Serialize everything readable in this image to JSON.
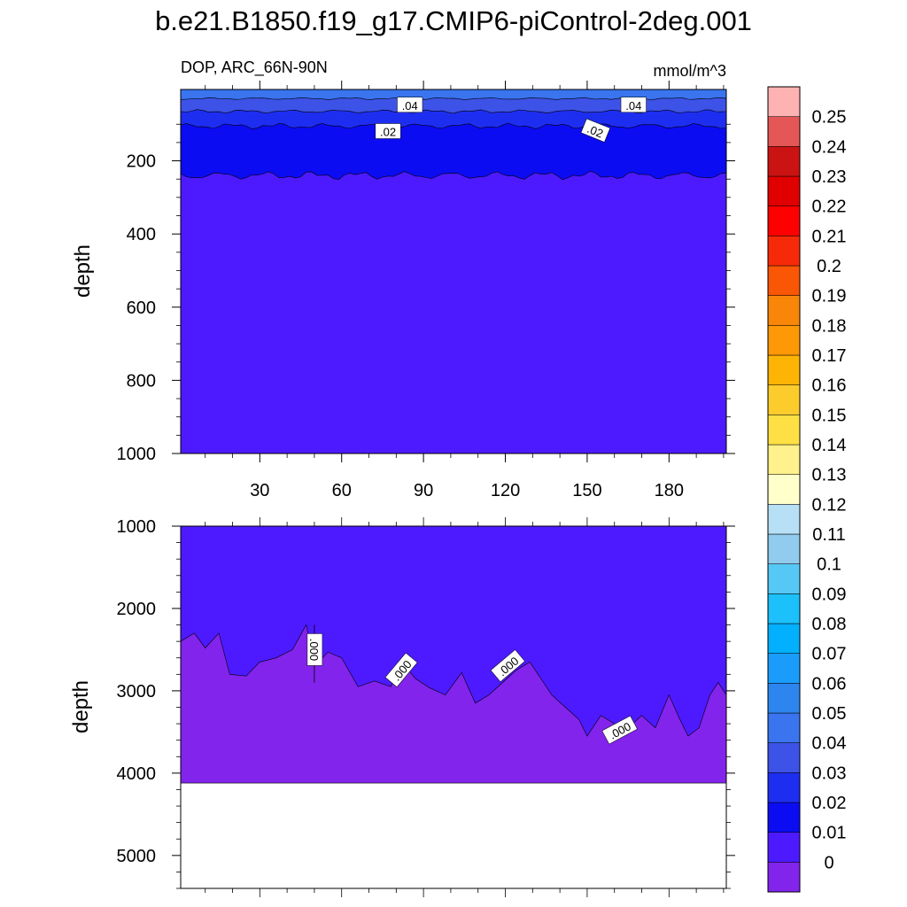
{
  "title": "b.e21.B1850.f19_g17.CMIP6-piControl-2deg.001",
  "colors": {
    "background": "#ffffff",
    "levels": [
      "#8224ec",
      "#4d1aff",
      "#0c0cf2",
      "#1e2ef0",
      "#3d52e6",
      "#3a74ef",
      "#2d86ee",
      "#1a9dfa",
      "#02b0fe",
      "#1cc0fb",
      "#56c8f6",
      "#91cbed",
      "#b7dff6",
      "#ffffcc",
      "#fff18b",
      "#ffe044",
      "#fccc2d",
      "#fdb405",
      "#fd9807",
      "#f88609",
      "#f95606",
      "#f62a09",
      "#ff0000",
      "#e00000",
      "#cb1313",
      "#e55656",
      "#feb2b2"
    ]
  },
  "chart_data": [
    {
      "type": "contour",
      "panel": "top",
      "variable_label": "DOP, ARC_66N-90N",
      "units": "mmol/m^3",
      "xlabel": "",
      "ylabel": "depth",
      "xlim": [
        1,
        201
      ],
      "ylim": [
        1000,
        5
      ],
      "y_reversed": true,
      "xticks": [
        30,
        60,
        90,
        120,
        150,
        180
      ],
      "yticks": [
        200,
        400,
        600,
        800,
        1000
      ],
      "contour_labels": [
        {
          "text": ".04",
          "x": 85,
          "y": 48
        },
        {
          "text": ".04",
          "x": 167,
          "y": 48
        },
        {
          "text": ".02",
          "x": 77,
          "y": 120
        },
        {
          "text": ".02",
          "x": 153,
          "y": 118
        }
      ],
      "layers": [
        {
          "min": 0.04,
          "max": 0.05,
          "depth_to": 30
        },
        {
          "min": 0.03,
          "max": 0.04,
          "depth_to": 65
        },
        {
          "min": 0.02,
          "max": 0.03,
          "depth_to": 105
        },
        {
          "min": 0.01,
          "max": 0.02,
          "depth_to": 240
        },
        {
          "min": 0.0,
          "max": 0.01,
          "depth_to": 1000
        }
      ]
    },
    {
      "type": "contour",
      "panel": "bottom",
      "xlabel": "",
      "ylabel": "depth",
      "ylim": [
        5400,
        1000
      ],
      "y_reversed": true,
      "yticks": [
        1000,
        2000,
        3000,
        4000,
        5000
      ],
      "data_extent_depth": 4120,
      "contour_labels": [
        {
          "text": ".000",
          "x": 50,
          "y": 2500
        },
        {
          "text": ".000",
          "x": 82,
          "y": 2750
        },
        {
          "text": ".000",
          "x": 121,
          "y": 2700
        },
        {
          "text": ".000",
          "x": 162,
          "y": 3480
        }
      ],
      "zero_contour_depth": [
        {
          "x": 1,
          "depth": 2400
        },
        {
          "x": 6,
          "depth": 2300
        },
        {
          "x": 10,
          "depth": 2480
        },
        {
          "x": 15,
          "depth": 2300
        },
        {
          "x": 19,
          "depth": 2800
        },
        {
          "x": 25,
          "depth": 2820
        },
        {
          "x": 30,
          "depth": 2650
        },
        {
          "x": 36,
          "depth": 2600
        },
        {
          "x": 42,
          "depth": 2500
        },
        {
          "x": 47,
          "depth": 2200
        },
        {
          "x": 50,
          "depth": 2700
        },
        {
          "x": 55,
          "depth": 2530
        },
        {
          "x": 60,
          "depth": 2600
        },
        {
          "x": 66,
          "depth": 2950
        },
        {
          "x": 72,
          "depth": 2880
        },
        {
          "x": 78,
          "depth": 2950
        },
        {
          "x": 82,
          "depth": 2650
        },
        {
          "x": 87,
          "depth": 2850
        },
        {
          "x": 92,
          "depth": 2960
        },
        {
          "x": 98,
          "depth": 3050
        },
        {
          "x": 104,
          "depth": 2780
        },
        {
          "x": 109,
          "depth": 3150
        },
        {
          "x": 114,
          "depth": 3050
        },
        {
          "x": 119,
          "depth": 2900
        },
        {
          "x": 124,
          "depth": 2750
        },
        {
          "x": 129,
          "depth": 2650
        },
        {
          "x": 133,
          "depth": 2850
        },
        {
          "x": 137,
          "depth": 3050
        },
        {
          "x": 142,
          "depth": 3200
        },
        {
          "x": 147,
          "depth": 3350
        },
        {
          "x": 150,
          "depth": 3550
        },
        {
          "x": 155,
          "depth": 3300
        },
        {
          "x": 160,
          "depth": 3400
        },
        {
          "x": 165,
          "depth": 3450
        },
        {
          "x": 170,
          "depth": 3300
        },
        {
          "x": 175,
          "depth": 3450
        },
        {
          "x": 180,
          "depth": 3050
        },
        {
          "x": 184,
          "depth": 3350
        },
        {
          "x": 187,
          "depth": 3550
        },
        {
          "x": 191,
          "depth": 3450
        },
        {
          "x": 195,
          "depth": 3050
        },
        {
          "x": 198,
          "depth": 2900
        },
        {
          "x": 201,
          "depth": 3050
        }
      ]
    },
    {
      "type": "colorbar",
      "levels": [
        "0",
        "0.01",
        "0.02",
        "0.03",
        "0.04",
        "0.05",
        "0.06",
        "0.07",
        "0.08",
        "0.09",
        "0.1",
        "0.11",
        "0.12",
        "0.13",
        "0.14",
        "0.15",
        "0.16",
        "0.17",
        "0.18",
        "0.19",
        "0.2",
        "0.21",
        "0.22",
        "0.23",
        "0.24",
        "0.25"
      ]
    }
  ]
}
